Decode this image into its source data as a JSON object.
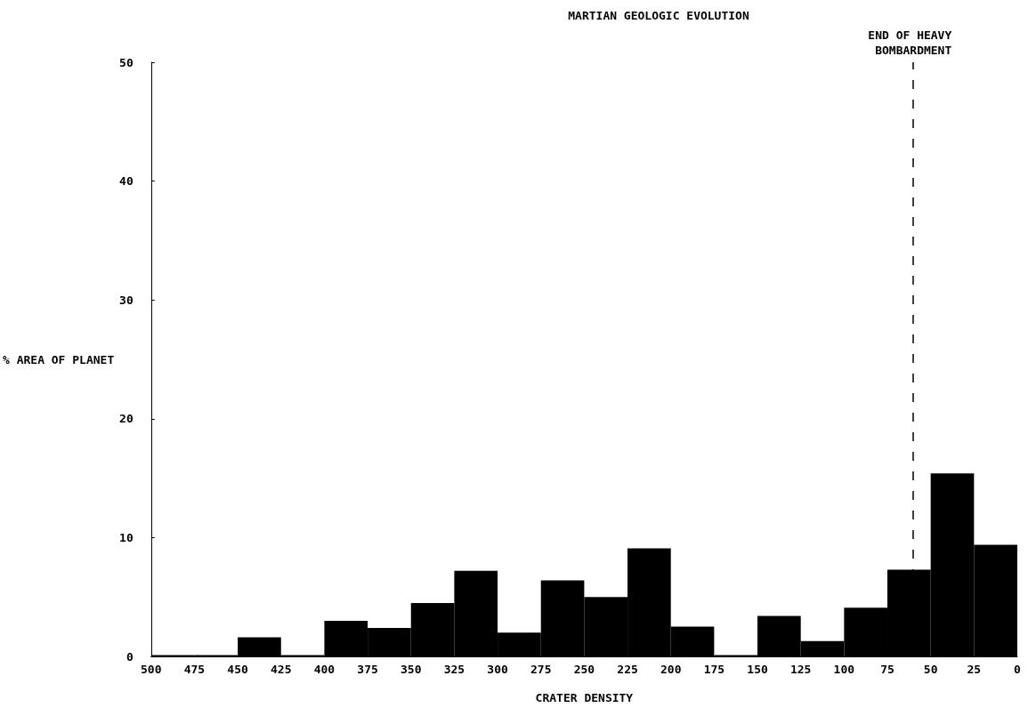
{
  "chart_data": {
    "type": "histogram",
    "title": "MARTIAN GEOLOGIC EVOLUTION",
    "xlabel": "CRATER DENSITY",
    "ylabel": "% AREA OF PLANET",
    "bins": [
      500,
      475,
      450,
      425,
      400,
      375,
      350,
      325,
      300,
      275,
      250,
      225,
      200,
      175,
      150,
      125,
      100,
      75,
      50,
      25,
      0
    ],
    "values": [
      0,
      0,
      1.6,
      0,
      3.0,
      2.4,
      4.5,
      7.2,
      2.0,
      6.4,
      5.0,
      9.1,
      2.5,
      0,
      3.4,
      1.3,
      4.1,
      7.3,
      15.4,
      9.4
    ],
    "color": "#000000",
    "xlim": [
      500,
      0
    ],
    "xticks": [
      500,
      475,
      450,
      425,
      400,
      375,
      350,
      325,
      300,
      275,
      250,
      225,
      200,
      175,
      150,
      125,
      100,
      75,
      50,
      25,
      0
    ],
    "ylim": [
      0,
      50
    ],
    "yticks": [
      0,
      10,
      20,
      30,
      40,
      50
    ],
    "grid": false,
    "ref_lines": [
      {
        "axis": "x",
        "value": 60,
        "label": "END OF HEAVY BOMBARDMENT",
        "color": "#000000",
        "line_style": "dashed"
      }
    ]
  }
}
